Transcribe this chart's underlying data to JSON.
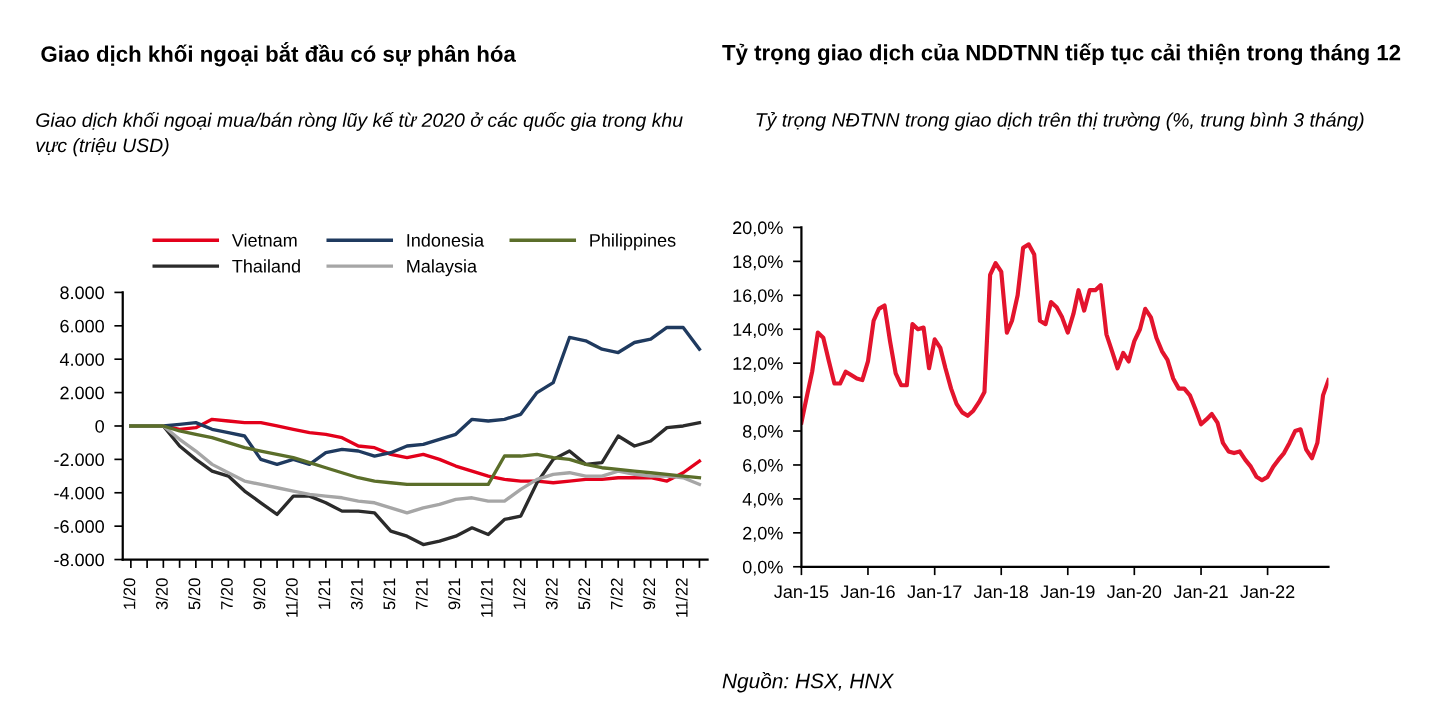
{
  "chart_data": [
    {
      "type": "line",
      "title": "Giao dịch khối ngoại bắt đầu có sự phân hóa",
      "subtitle": "Giao dịch khối ngoại mua/bán ròng lũy kế từ 2020 ở các quốc gia trong khu vực (triệu USD)",
      "categories": [
        "1/20",
        null,
        "3/20",
        null,
        "5/20",
        null,
        "7/20",
        null,
        "9/20",
        null,
        "11/20",
        null,
        "1/21",
        null,
        "3/21",
        null,
        "5/21",
        null,
        "7/21",
        null,
        "9/21",
        null,
        "11/21",
        null,
        "1/22",
        null,
        "3/22",
        null,
        "5/22",
        null,
        "7/22",
        null,
        "9/22",
        null,
        "11/22",
        null
      ],
      "series": [
        {
          "name": "Vietnam",
          "color": "#e3001b",
          "values": [
            0,
            0,
            0,
            -200,
            -100,
            400,
            300,
            200,
            200,
            0,
            -200,
            -400,
            -500,
            -700,
            -1200,
            -1300,
            -1700,
            -1900,
            -1700,
            -2000,
            -2400,
            -2700,
            -3000,
            -3200,
            -3300,
            -3300,
            -3400,
            -3300,
            -3200,
            -3200,
            -3100,
            -3100,
            -3100,
            -3300,
            -2800,
            -2100
          ]
        },
        {
          "name": "Thailand",
          "color": "#2b2b2b",
          "values": [
            0,
            0,
            0,
            -1200,
            -2000,
            -2700,
            -3000,
            -3900,
            -4600,
            -5300,
            -4200,
            -4200,
            -4600,
            -5100,
            -5100,
            -5200,
            -6300,
            -6600,
            -7100,
            -6900,
            -6600,
            -6100,
            -6500,
            -5600,
            -5400,
            -3400,
            -2000,
            -1500,
            -2300,
            -2200,
            -600,
            -1200,
            -900,
            -100,
            0,
            200
          ]
        },
        {
          "name": "Indonesia",
          "color": "#1f3a5f",
          "values": [
            0,
            0,
            0,
            100,
            200,
            -200,
            -400,
            -600,
            -2000,
            -2300,
            -2000,
            -2300,
            -1600,
            -1400,
            -1500,
            -1800,
            -1600,
            -1200,
            -1100,
            -800,
            -500,
            400,
            300,
            400,
            700,
            2000,
            2600,
            5300,
            5100,
            4600,
            4400,
            5000,
            5200,
            5900,
            5900,
            4600
          ]
        },
        {
          "name": "Malaysia",
          "color": "#a6a6a6",
          "values": [
            0,
            0,
            0,
            -800,
            -1500,
            -2300,
            -2800,
            -3300,
            -3500,
            -3700,
            -3900,
            -4100,
            -4200,
            -4300,
            -4500,
            -4600,
            -4900,
            -5200,
            -4900,
            -4700,
            -4400,
            -4300,
            -4500,
            -4500,
            -3800,
            -3200,
            -2900,
            -2800,
            -3000,
            -3000,
            -2700,
            -2900,
            -3000,
            -3000,
            -3100,
            -3500
          ]
        },
        {
          "name": "Philippines",
          "color": "#5b6e2a",
          "values": [
            0,
            0,
            0,
            -300,
            -500,
            -700,
            -1000,
            -1300,
            -1500,
            -1700,
            -1900,
            -2200,
            -2500,
            -2800,
            -3100,
            -3300,
            -3400,
            -3500,
            -3500,
            -3500,
            -3500,
            -3500,
            -3500,
            -1800,
            -1800,
            -1700,
            -1900,
            -2000,
            -2300,
            -2500,
            -2600,
            -2700,
            -2800,
            -2900,
            -3000,
            -3100
          ]
        }
      ],
      "ylim": [
        -8000,
        8000
      ],
      "yticks": [
        {
          "value": -8000,
          "label": "-8.000"
        },
        {
          "value": -6000,
          "label": "-6.000"
        },
        {
          "value": -4000,
          "label": "-4.000"
        },
        {
          "value": -2000,
          "label": "-2.000"
        },
        0,
        {
          "value": 2000,
          "label": "2.000"
        },
        {
          "value": 4000,
          "label": "4.000"
        },
        {
          "value": 6000,
          "label": "6.000"
        },
        {
          "value": 8000,
          "label": "8.000"
        }
      ],
      "legend": "top",
      "grid": false
    },
    {
      "type": "line",
      "title": "Tỷ trọng giao dịch của NDDTNN tiếp tục cải thiện trong tháng 12",
      "subtitle": "Tỷ trọng NĐTNN trong giao dịch trên thị trường (%, trung bình 3 tháng)",
      "annotations": [
        "Nguồn: HSX, HNX"
      ],
      "x": [
        "2015-01",
        "2015-02",
        "2015-03",
        "2015-04",
        "2015-05",
        "2015-06",
        "2015-07",
        "2015-08",
        "2015-09",
        "2015-10",
        "2015-11",
        "2015-12",
        "2016-01",
        "2016-02",
        "2016-03",
        "2016-04",
        "2016-05",
        "2016-06",
        "2016-07",
        "2016-08",
        "2016-09",
        "2016-10",
        "2016-11",
        "2016-12",
        "2017-01",
        "2017-02",
        "2017-03",
        "2017-04",
        "2017-05",
        "2017-06",
        "2017-07",
        "2017-08",
        "2017-09",
        "2017-10",
        "2017-11",
        "2017-12",
        "2018-01",
        "2018-02",
        "2018-03",
        "2018-04",
        "2018-05",
        "2018-06",
        "2018-07",
        "2018-08",
        "2018-09",
        "2018-10",
        "2018-11",
        "2018-12",
        "2019-01",
        "2019-02",
        "2019-03",
        "2019-04",
        "2019-05",
        "2019-06",
        "2019-07",
        "2019-08",
        "2019-09",
        "2019-10",
        "2019-11",
        "2019-12",
        "2020-01",
        "2020-02",
        "2020-03",
        "2020-04",
        "2020-05",
        "2020-06",
        "2020-07",
        "2020-08",
        "2020-09",
        "2020-10",
        "2020-11",
        "2020-12",
        "2021-01",
        "2021-02",
        "2021-03",
        "2021-04",
        "2021-05",
        "2021-06",
        "2021-07",
        "2021-08",
        "2021-09",
        "2021-10",
        "2021-11",
        "2021-12",
        "2022-01",
        "2022-02",
        "2022-03",
        "2022-04",
        "2022-05",
        "2022-06",
        "2022-07",
        "2022-08",
        "2022-09",
        "2022-10",
        "2022-11",
        "2022-12"
      ],
      "series": [
        {
          "color": "#e3142d",
          "values": [
            8.5,
            10.1,
            11.5,
            13.8,
            13.5,
            12.1,
            10.8,
            10.8,
            11.5,
            11.3,
            11.1,
            11.0,
            12.1,
            14.5,
            15.2,
            15.4,
            13.3,
            11.4,
            10.7,
            10.7,
            14.3,
            14.0,
            14.1,
            11.7,
            13.4,
            12.9,
            11.7,
            10.5,
            9.6,
            9.1,
            8.9,
            9.2,
            9.7,
            10.3,
            17.2,
            17.9,
            17.4,
            13.8,
            14.5,
            16.0,
            18.8,
            19.0,
            18.4,
            14.5,
            14.3,
            15.6,
            15.3,
            14.7,
            13.8,
            14.9,
            16.3,
            15.1,
            16.3,
            16.3,
            16.6,
            13.7,
            12.7,
            11.7,
            12.6,
            12.1,
            13.3,
            14.0,
            15.2,
            14.7,
            13.5,
            12.7,
            12.2,
            11.1,
            10.5,
            10.5,
            10.1,
            9.3,
            8.4,
            8.7,
            9.0,
            8.5,
            7.3,
            6.8,
            6.7,
            6.8,
            6.3,
            5.9,
            5.3,
            5.1,
            5.3,
            5.9,
            6.3,
            6.7,
            7.3,
            8.0,
            8.1,
            6.9,
            6.4,
            7.3,
            10.1,
            11.0
          ]
        }
      ],
      "xlim": [
        "2015-01",
        "2022-12"
      ],
      "xticks": [
        {
          "value": "2015-01",
          "label": "Jan-15"
        },
        {
          "value": "2016-01",
          "label": "Jan-16"
        },
        {
          "value": "2017-01",
          "label": "Jan-17"
        },
        {
          "value": "2018-01",
          "label": "Jan-18"
        },
        {
          "value": "2019-01",
          "label": "Jan-19"
        },
        {
          "value": "2020-01",
          "label": "Jan-20"
        },
        {
          "value": "2021-01",
          "label": "Jan-21"
        },
        {
          "value": "2022-01",
          "label": "Jan-22"
        }
      ],
      "ylim": [
        0,
        20
      ],
      "yticks": [
        {
          "value": 0,
          "label": "0,0%"
        },
        {
          "value": 2,
          "label": "2,0%"
        },
        {
          "value": 4,
          "label": "4,0%"
        },
        {
          "value": 6,
          "label": "6,0%"
        },
        {
          "value": 8,
          "label": "8,0%"
        },
        {
          "value": 10,
          "label": "10,0%"
        },
        {
          "value": 12,
          "label": "12,0%"
        },
        {
          "value": 14,
          "label": "14,0%"
        },
        {
          "value": 16,
          "label": "16,0%"
        },
        {
          "value": 18,
          "label": "18,0%"
        },
        {
          "value": 20,
          "label": "20,0%"
        }
      ],
      "grid": false
    }
  ]
}
